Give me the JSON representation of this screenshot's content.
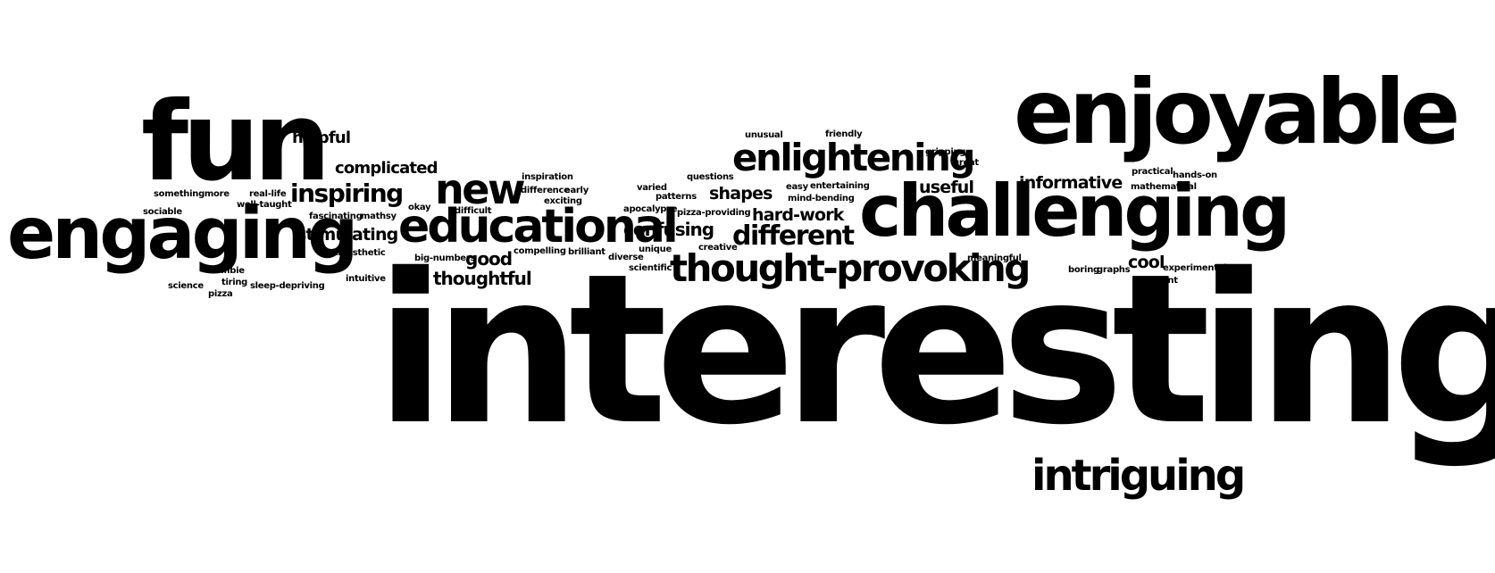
{
  "colors": {
    "text": "#000000",
    "background": "#ffffff"
  },
  "words": [
    {
      "text": "interesting"
    },
    {
      "text": "enjoyable"
    },
    {
      "text": "fun"
    },
    {
      "text": "engaging"
    },
    {
      "text": "challenging"
    },
    {
      "text": "educational"
    },
    {
      "text": "thought-provoking"
    },
    {
      "text": "enlightening"
    },
    {
      "text": "new"
    },
    {
      "text": "intriguing"
    },
    {
      "text": "different"
    },
    {
      "text": "inspiring"
    },
    {
      "text": "complicated"
    },
    {
      "text": "stimulating"
    },
    {
      "text": "helpful"
    },
    {
      "text": "confusing"
    },
    {
      "text": "thoughtful"
    },
    {
      "text": "informative"
    },
    {
      "text": "useful"
    },
    {
      "text": "shapes"
    },
    {
      "text": "hard-work"
    },
    {
      "text": "good"
    },
    {
      "text": "cool"
    },
    {
      "text": "somethingmore"
    },
    {
      "text": "real-life"
    },
    {
      "text": "well-taught"
    },
    {
      "text": "sociable"
    },
    {
      "text": "fascinating"
    },
    {
      "text": "mathsy"
    },
    {
      "text": "kinesthetic"
    },
    {
      "text": "zombie"
    },
    {
      "text": "tiring"
    },
    {
      "text": "science"
    },
    {
      "text": "pizza"
    },
    {
      "text": "sleep-depriving"
    },
    {
      "text": "intuitive"
    },
    {
      "text": "okay"
    },
    {
      "text": "difficult"
    },
    {
      "text": "big-numbers"
    },
    {
      "text": "inspiration"
    },
    {
      "text": "difference"
    },
    {
      "text": "early"
    },
    {
      "text": "exciting"
    },
    {
      "text": "compelling"
    },
    {
      "text": "brilliant"
    },
    {
      "text": "varied"
    },
    {
      "text": "patterns"
    },
    {
      "text": "apocalypse"
    },
    {
      "text": "unique"
    },
    {
      "text": "diverse"
    },
    {
      "text": "scientific"
    },
    {
      "text": "questions"
    },
    {
      "text": "pizza-providing"
    },
    {
      "text": "creative"
    },
    {
      "text": "unusual"
    },
    {
      "text": "friendly"
    },
    {
      "text": "easy"
    },
    {
      "text": "entertaining"
    },
    {
      "text": "mind-bending"
    },
    {
      "text": "gripping"
    },
    {
      "text": "great"
    },
    {
      "text": "meaningful"
    },
    {
      "text": "practical"
    },
    {
      "text": "hands-on"
    },
    {
      "text": "mathematical"
    },
    {
      "text": "boring"
    },
    {
      "text": "graphs"
    },
    {
      "text": "experimental"
    },
    {
      "text": "relevant"
    }
  ]
}
